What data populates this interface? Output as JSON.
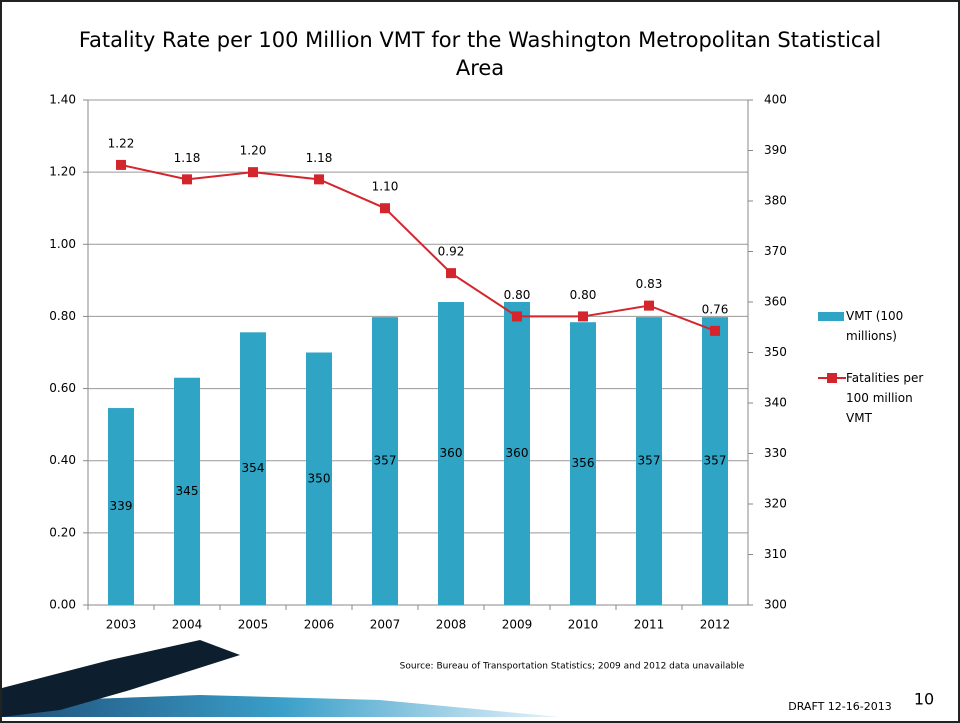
{
  "chart_data": {
    "type": "bar-line",
    "title": "Fatality Rate per 100 Million VMT for the Washington Metropolitan Statistical Area",
    "categories": [
      "2003",
      "2004",
      "2005",
      "2006",
      "2007",
      "2008",
      "2009",
      "2010",
      "2011",
      "2012"
    ],
    "series": [
      {
        "name": "VMT (100 millions)",
        "type": "bar",
        "axis": "y2",
        "color": "#2fa4c4",
        "values": [
          339,
          345,
          354,
          350,
          357,
          360,
          360,
          356,
          357,
          357
        ]
      },
      {
        "name": "Fatalities per 100 million VMT",
        "type": "line",
        "axis": "y",
        "color": "#d4252d",
        "values": [
          1.22,
          1.18,
          1.2,
          1.18,
          1.1,
          0.92,
          0.8,
          0.8,
          0.83,
          0.76
        ],
        "value_labels": [
          "1.22",
          "1.18",
          "1.20",
          "1.18",
          "1.10",
          "0.92",
          "0.80",
          "0.80",
          "0.83",
          "0.76"
        ]
      }
    ],
    "ylim": [
      0,
      1.4
    ],
    "yticks": [
      {
        "value": 0,
        "label": "0.00"
      },
      {
        "value": 0.2,
        "label": "0.20"
      },
      {
        "value": 0.4,
        "label": "0.40"
      },
      {
        "value": 0.6,
        "label": "0.60"
      },
      {
        "value": 0.8,
        "label": "0.80"
      },
      {
        "value": 1,
        "label": "1.00"
      },
      {
        "value": 1.2,
        "label": "1.20"
      },
      {
        "value": 1.4,
        "label": "1.40"
      }
    ],
    "y2lim": [
      300,
      400
    ],
    "y2ticks": [
      300,
      310,
      320,
      330,
      340,
      350,
      360,
      370,
      380,
      390,
      400
    ],
    "grid": true,
    "legend": "right",
    "source": "Source: Bureau of Transportation Statistics; 2009 and 2012 data unavailable",
    "footer": "DRAFT 12-16-2013",
    "page_number": "10"
  }
}
